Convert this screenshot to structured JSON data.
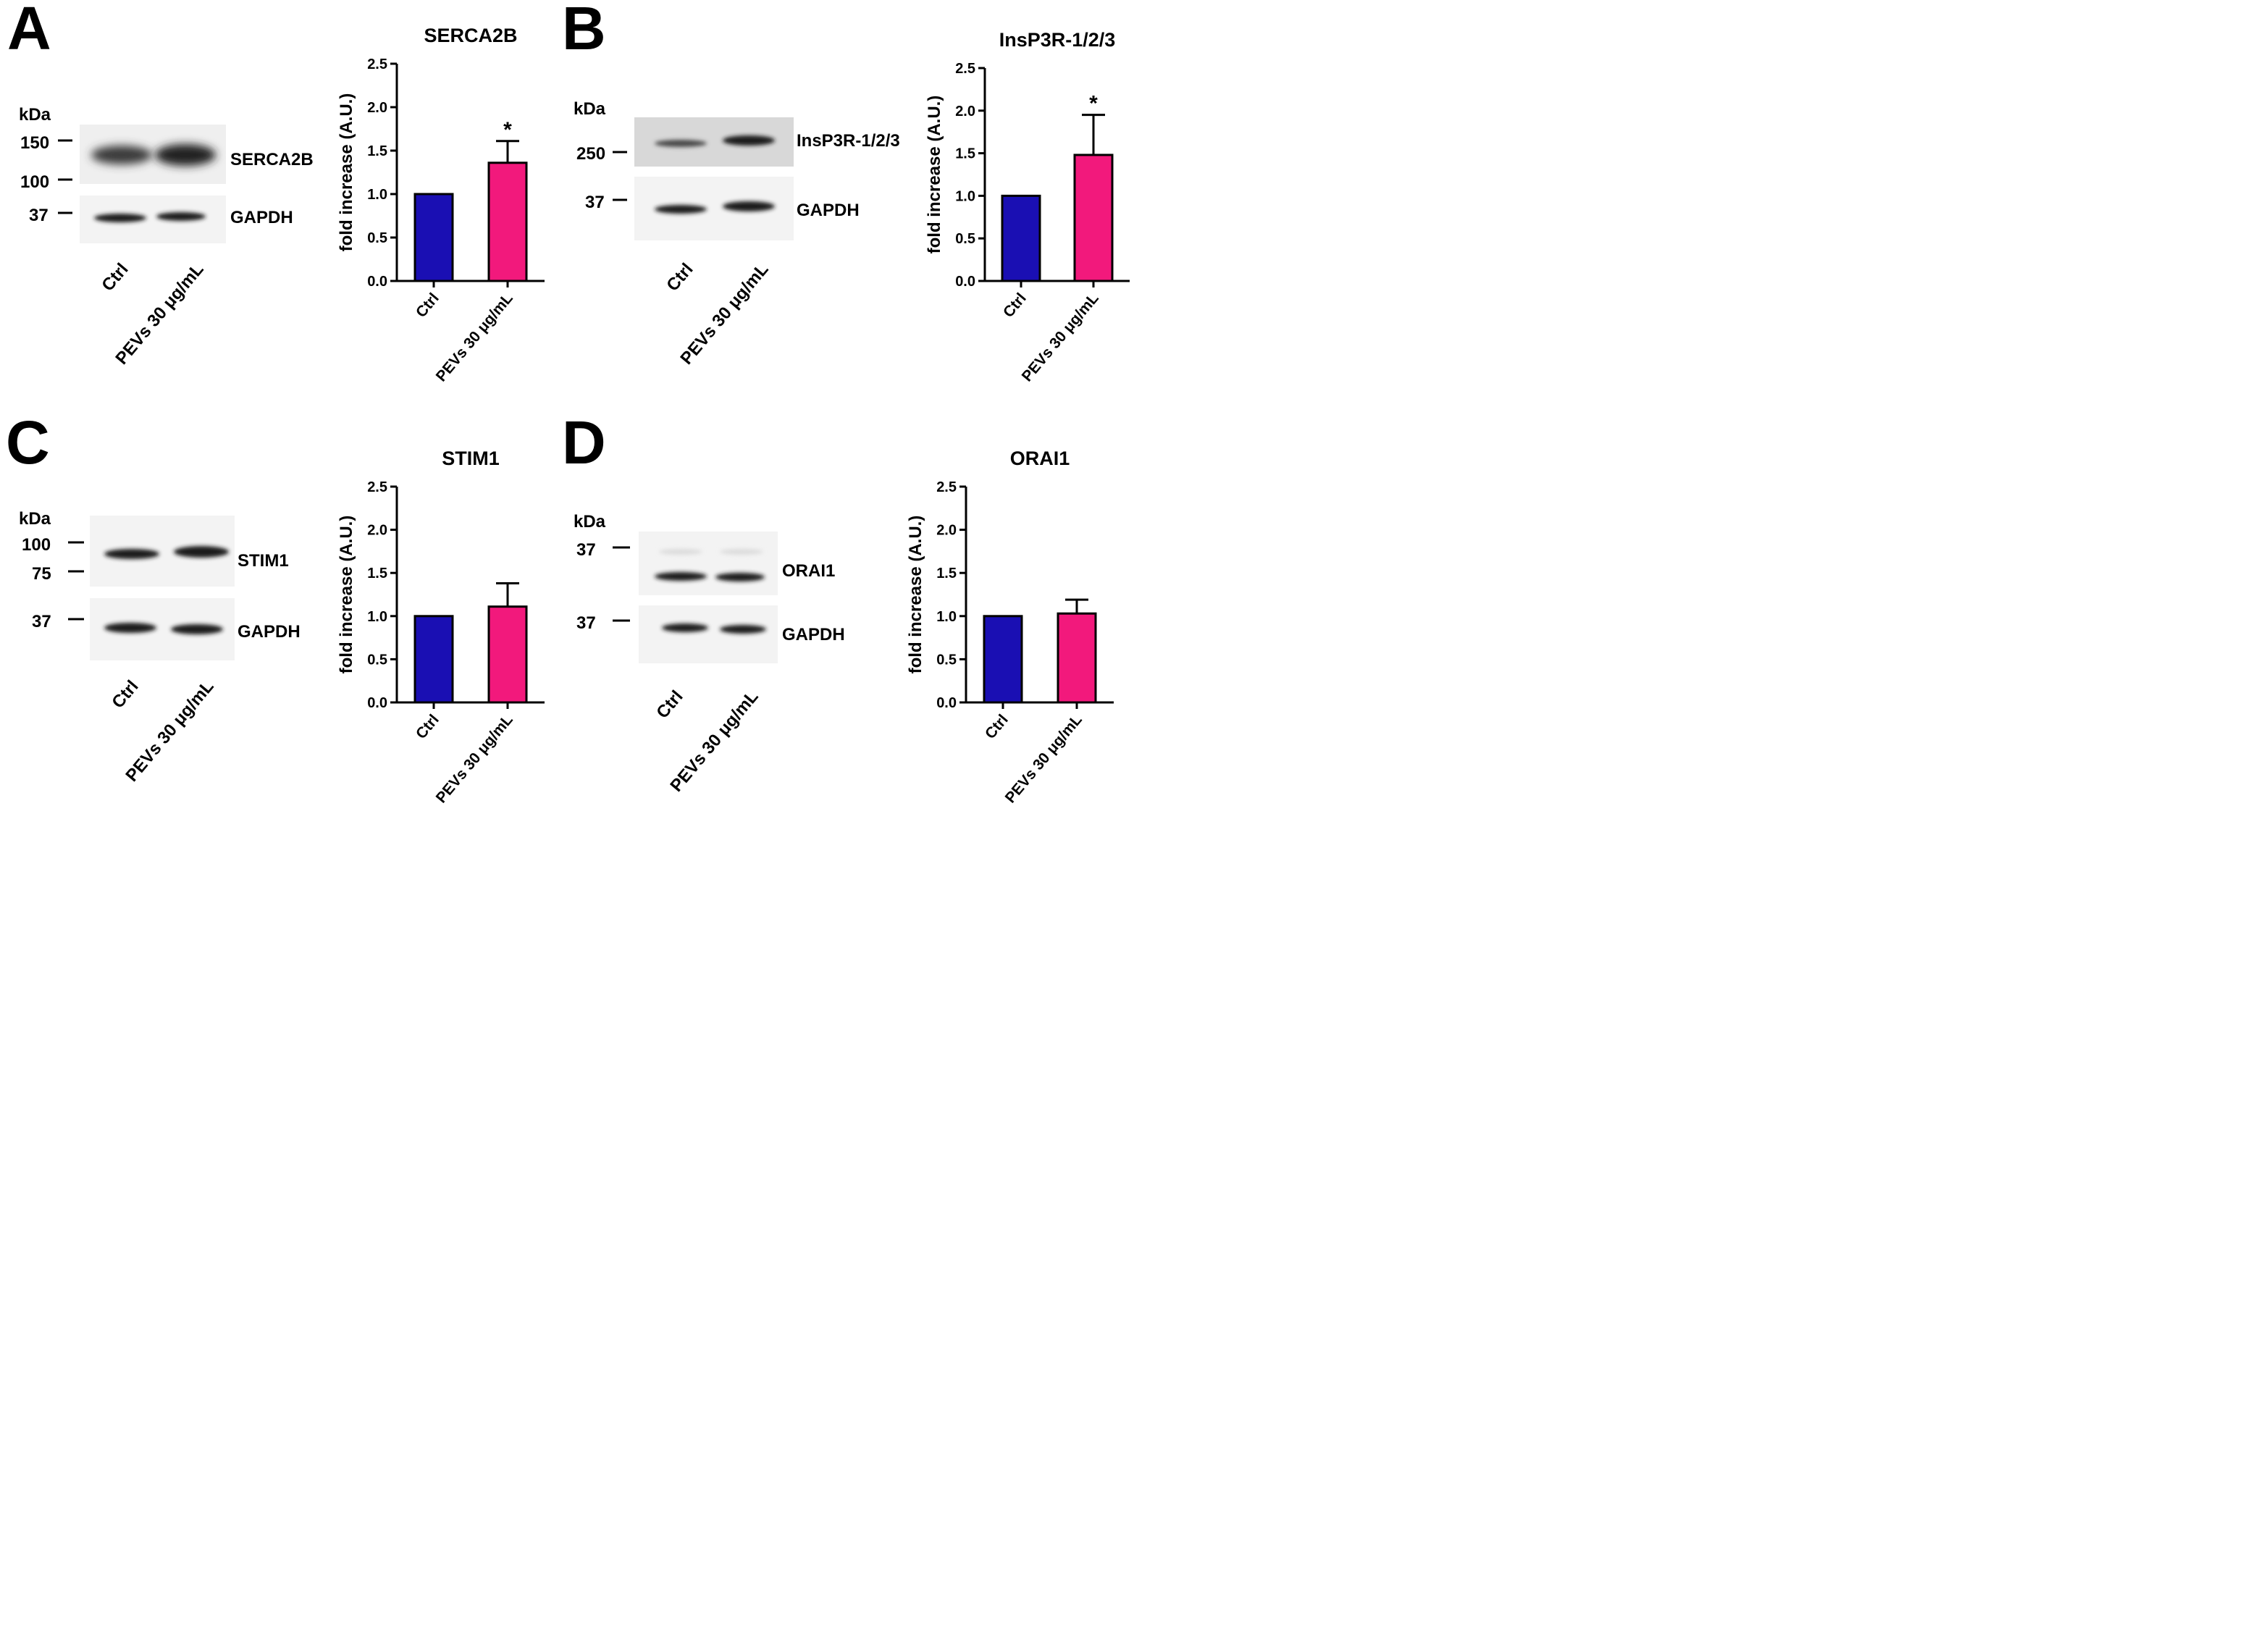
{
  "figure": {
    "panels": [
      {
        "letter": "A",
        "blot": {
          "kda_label": "kDa",
          "markers": [
            "150",
            "100",
            "37"
          ],
          "bands": [
            "SERCA2B",
            "GAPDH"
          ],
          "lanes": [
            "Ctrl",
            "PEVs 30 μg/mL"
          ]
        }
      },
      {
        "letter": "B",
        "blot": {
          "kda_label": "kDa",
          "markers": [
            "250",
            "37"
          ],
          "bands": [
            "InsP3R-1/2/3",
            "GAPDH"
          ],
          "lanes": [
            "Ctrl",
            "PEVs 30 μg/mL"
          ]
        }
      },
      {
        "letter": "C",
        "blot": {
          "kda_label": "kDa",
          "markers": [
            "100",
            "75",
            "37"
          ],
          "bands": [
            "STIM1",
            "GAPDH"
          ],
          "lanes": [
            "Ctrl",
            "PEVs 30 μg/mL"
          ]
        }
      },
      {
        "letter": "D",
        "blot": {
          "kda_label": "kDa",
          "markers": [
            "37",
            "37"
          ],
          "bands": [
            "ORAI1",
            "GAPDH"
          ],
          "lanes": [
            "Ctrl",
            "PEVs 30 μg/mL"
          ]
        }
      }
    ]
  },
  "colors": {
    "ctrl": "#1a0fb3",
    "pevs": "#f2197c",
    "blot_bg": "#f2f2f2",
    "band": "#1a1a1a"
  },
  "chart_data": [
    {
      "type": "bar",
      "title": "SERCA2B",
      "ylabel": "fold increase (A.U.)",
      "xlabel": "",
      "categories": [
        "Ctrl",
        "PEVs 30 μg/mL"
      ],
      "values": [
        1.0,
        1.36
      ],
      "errors": [
        0,
        0.25
      ],
      "significance": [
        "",
        "*"
      ],
      "ylim": [
        0,
        2.5
      ],
      "yticks": [
        "0.0",
        "0.5",
        "1.0",
        "1.5",
        "2.0",
        "2.5"
      ],
      "bar_colors": [
        "#1a0fb3",
        "#f2197c"
      ],
      "grid": false
    },
    {
      "type": "bar",
      "title": "InsP3R-1/2/3",
      "ylabel": "fold increase (A.U.)",
      "xlabel": "",
      "categories": [
        "Ctrl",
        "PEVs 30 μg/mL"
      ],
      "values": [
        1.0,
        1.48
      ],
      "errors": [
        0,
        0.47
      ],
      "significance": [
        "",
        "*"
      ],
      "ylim": [
        0,
        2.5
      ],
      "yticks": [
        "0.0",
        "0.5",
        "1.0",
        "1.5",
        "2.0",
        "2.5"
      ],
      "bar_colors": [
        "#1a0fb3",
        "#f2197c"
      ],
      "grid": false
    },
    {
      "type": "bar",
      "title": "STIM1",
      "ylabel": "fold increase (A.U.)",
      "xlabel": "",
      "categories": [
        "Ctrl",
        "PEVs 30 μg/mL"
      ],
      "values": [
        1.0,
        1.11
      ],
      "errors": [
        0,
        0.27
      ],
      "significance": [
        "",
        ""
      ],
      "ylim": [
        0,
        2.5
      ],
      "yticks": [
        "0.0",
        "0.5",
        "1.0",
        "1.5",
        "2.0",
        "2.5"
      ],
      "bar_colors": [
        "#1a0fb3",
        "#f2197c"
      ],
      "grid": false
    },
    {
      "type": "bar",
      "title": "ORAI1",
      "ylabel": "fold increase (A.U.)",
      "xlabel": "",
      "categories": [
        "Ctrl",
        "PEVs 30 μg/mL"
      ],
      "values": [
        1.0,
        1.03
      ],
      "errors": [
        0,
        0.16
      ],
      "significance": [
        "",
        ""
      ],
      "ylim": [
        0,
        2.5
      ],
      "yticks": [
        "0.0",
        "0.5",
        "1.0",
        "1.5",
        "2.0",
        "2.5"
      ],
      "bar_colors": [
        "#1a0fb3",
        "#f2197c"
      ],
      "grid": false
    }
  ]
}
